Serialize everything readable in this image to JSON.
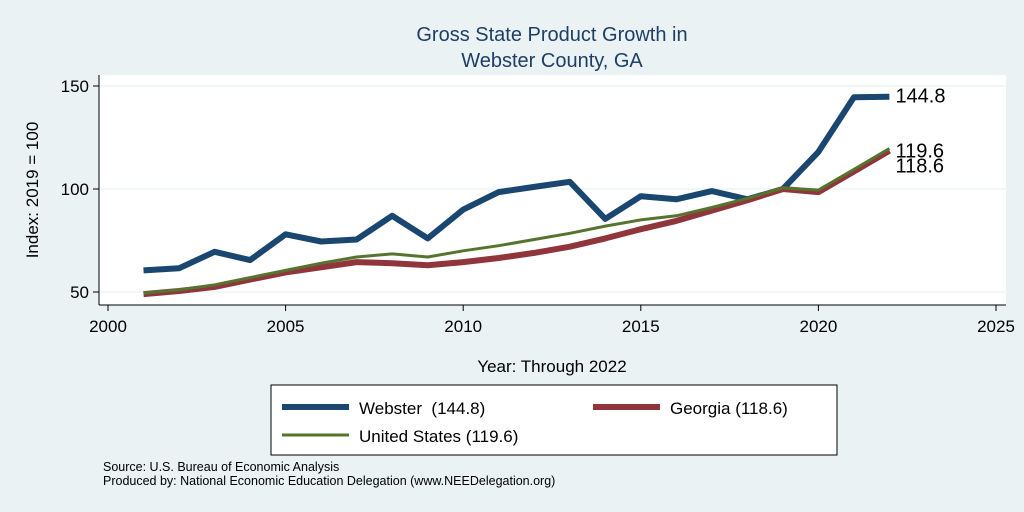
{
  "chart_data": {
    "type": "line",
    "title": [
      "Gross State Product Growth in",
      "Webster County, GA"
    ],
    "xlabel": "Year: Through 2022",
    "ylabel": "Index: 2019 = 100",
    "xlim": [
      2000,
      2025
    ],
    "ylim": [
      45,
      155
    ],
    "xticks": [
      "2000",
      "2005",
      "2010",
      "2015",
      "2020",
      "2025"
    ],
    "yticks": [
      "50",
      "100",
      "150"
    ],
    "x": [
      2001,
      2002,
      2003,
      2004,
      2005,
      2006,
      2007,
      2008,
      2009,
      2010,
      2011,
      2012,
      2013,
      2014,
      2015,
      2016,
      2017,
      2018,
      2019,
      2020,
      2021,
      2022
    ],
    "series": [
      {
        "name": "Webster",
        "legend": "Webster  (144.8)",
        "color": "#1a476f",
        "end_label": "144.8",
        "values": [
          60.5,
          61.5,
          69.5,
          65.5,
          78,
          74.5,
          75.5,
          87,
          76,
          90,
          98.5,
          101,
          103.5,
          85.5,
          96.5,
          95,
          99,
          95,
          100,
          118,
          144.5,
          144.8
        ]
      },
      {
        "name": "Georgia",
        "legend": "Georgia (118.6)",
        "color": "#90353b",
        "end_label": "118.6",
        "values": [
          49,
          50.5,
          52.5,
          56,
          59.5,
          62,
          64.5,
          64,
          63,
          64.5,
          66.5,
          69,
          72,
          76,
          80.5,
          84.5,
          89.5,
          94.5,
          100,
          98.5,
          108.5,
          118.6
        ]
      },
      {
        "name": "United States",
        "legend": "United States (119.6)",
        "color": "#55752f",
        "end_label": "119.6",
        "values": [
          49.5,
          51,
          53.5,
          57,
          60.5,
          64,
          67,
          68.5,
          67,
          70,
          72.5,
          75.5,
          78.5,
          82,
          85,
          87,
          91,
          95.5,
          100.5,
          99.5,
          109.5,
          119.6
        ]
      }
    ]
  },
  "footer": {
    "source": "Source: U.S. Bureau of Economic Analysis",
    "produced": "Produced by: National Economic Education Delegation (www.NEEDelegation.org)"
  }
}
